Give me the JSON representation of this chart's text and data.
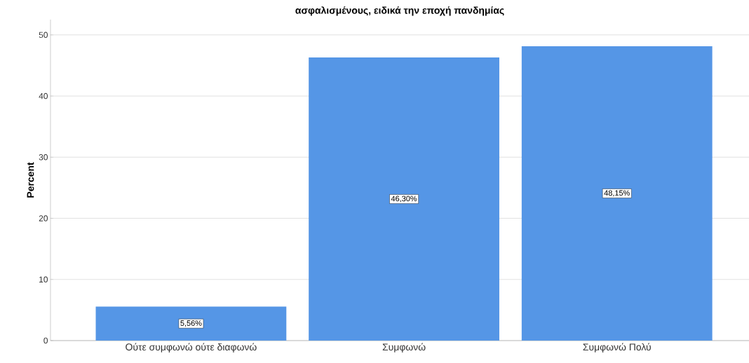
{
  "chart_data": {
    "type": "bar",
    "title": "ασφαλισμένους, ειδικά την εποχή πανδημίας",
    "ylabel": "Percent",
    "categories": [
      "Ούτε συμφωνώ ούτε διαφωνώ",
      "Συμφωνώ",
      "Συμφωνώ Πολύ"
    ],
    "values": [
      5.56,
      46.3,
      48.15
    ],
    "value_labels": [
      "5,56%",
      "46,30%",
      "48,15%"
    ],
    "color": "#5596e6",
    "ylim": [
      0,
      52.5
    ],
    "yticks": [
      0,
      10,
      20,
      30,
      40,
      50
    ],
    "grid": "y"
  }
}
